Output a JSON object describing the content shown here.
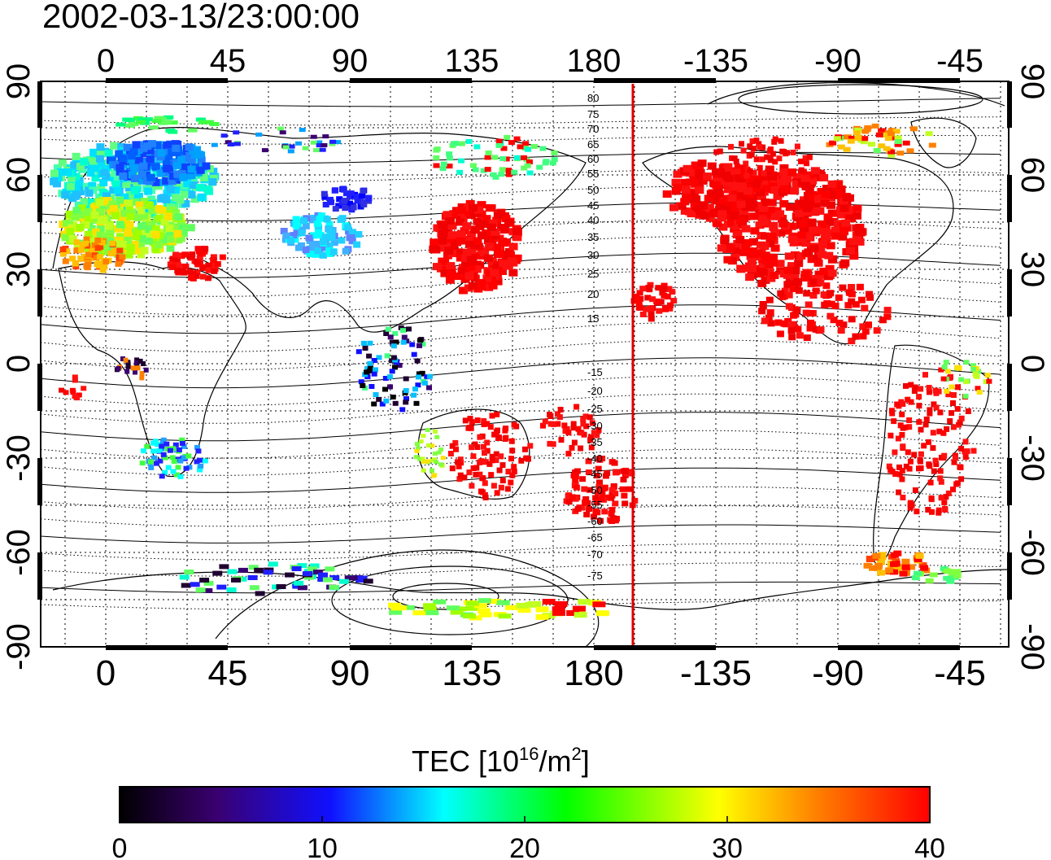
{
  "title": "2002-03-13/23:00:00",
  "map": {
    "lon_ticks": [
      "0",
      "45",
      "90",
      "135",
      "180",
      "-135",
      "-90",
      "-45"
    ],
    "lat_ticks_left": [
      "90",
      "60",
      "30",
      "0",
      "-30",
      "-60",
      "-90"
    ],
    "lat_ticks_right": [
      "90",
      "60",
      "30",
      "0",
      "-30",
      "-60",
      "-90"
    ],
    "contour_labels": [
      "80",
      "75",
      "70",
      "65",
      "60",
      "55",
      "50",
      "45",
      "40",
      "35",
      "30",
      "25",
      "20",
      "15",
      "-15",
      "-20",
      "-25",
      "-30",
      "-35",
      "-40",
      "-45",
      "-50",
      "-55",
      "-60",
      "-65",
      "-70",
      "-75"
    ],
    "terminator_color": "#e00000"
  },
  "colorbar": {
    "label_main": "TEC  [10",
    "label_sup1": "16",
    "label_mid": "/m",
    "label_sup2": "2",
    "label_end": "]",
    "ticks": [
      "0",
      "10",
      "20",
      "30",
      "40"
    ],
    "stops": [
      "#000000",
      "#3a0070",
      "#1010ff",
      "#00ffff",
      "#00ff00",
      "#ffff00",
      "#ff8000",
      "#ff0000"
    ]
  }
}
